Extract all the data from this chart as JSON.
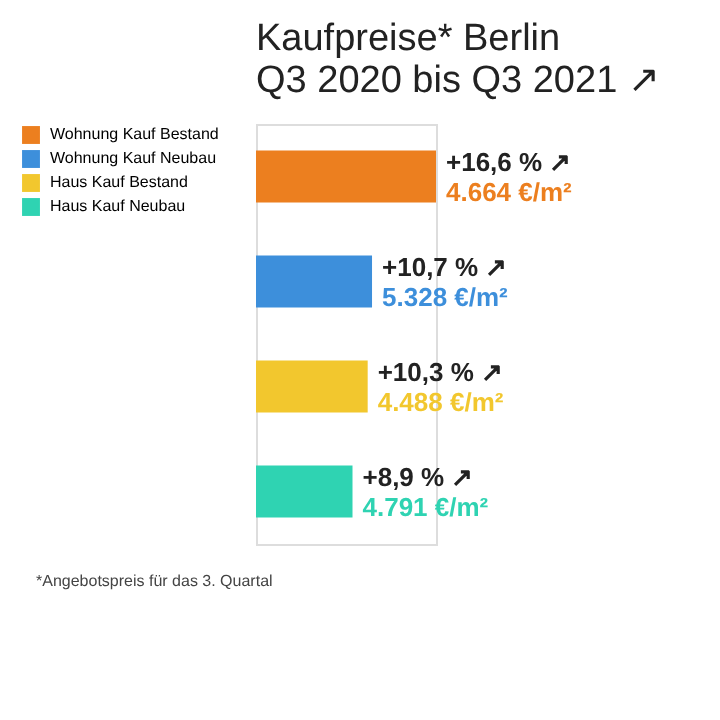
{
  "chart_data": {
    "type": "bar",
    "orientation": "horizontal",
    "title": "Kaufpreise* Berlin\nQ3 2020 bis Q3 2021 ↗",
    "categories": [
      null,
      null,
      null,
      null
    ],
    "series": [
      {
        "name": "Wohnung Kauf Bestand",
        "color": "#ec7f1f",
        "values": [
          16.6,
          null,
          null,
          null
        ],
        "value_labels": [
          "+16,6 % ↗",
          null,
          null,
          null
        ]
      },
      {
        "name": "Wohnung Kauf Neubau",
        "color": "#3d8fdb",
        "values": [
          null,
          10.7,
          null,
          null
        ],
        "value_labels": [
          null,
          "+10,7 % ↗",
          null,
          null
        ]
      },
      {
        "name": "Haus Kauf Bestand",
        "color": "#f2c72e",
        "values": [
          null,
          null,
          10.3,
          null
        ],
        "value_labels": [
          null,
          null,
          "+10,3 % ↗",
          null
        ]
      },
      {
        "name": "Haus Kauf Neubau",
        "color": "#2fd3b2",
        "values": [
          null,
          null,
          null,
          8.9
        ],
        "value_labels": [
          null,
          null,
          null,
          "+8,9 % ↗"
        ]
      }
    ],
    "annotations": [
      "4.664 €/m²",
      "5.328 €/m²",
      "4.488 €/m²",
      "4.791 €/m²",
      "*Angebotspreis für das 3. Quartal"
    ],
    "stacked": true,
    "legend": "left",
    "tick_labels": false
  }
}
